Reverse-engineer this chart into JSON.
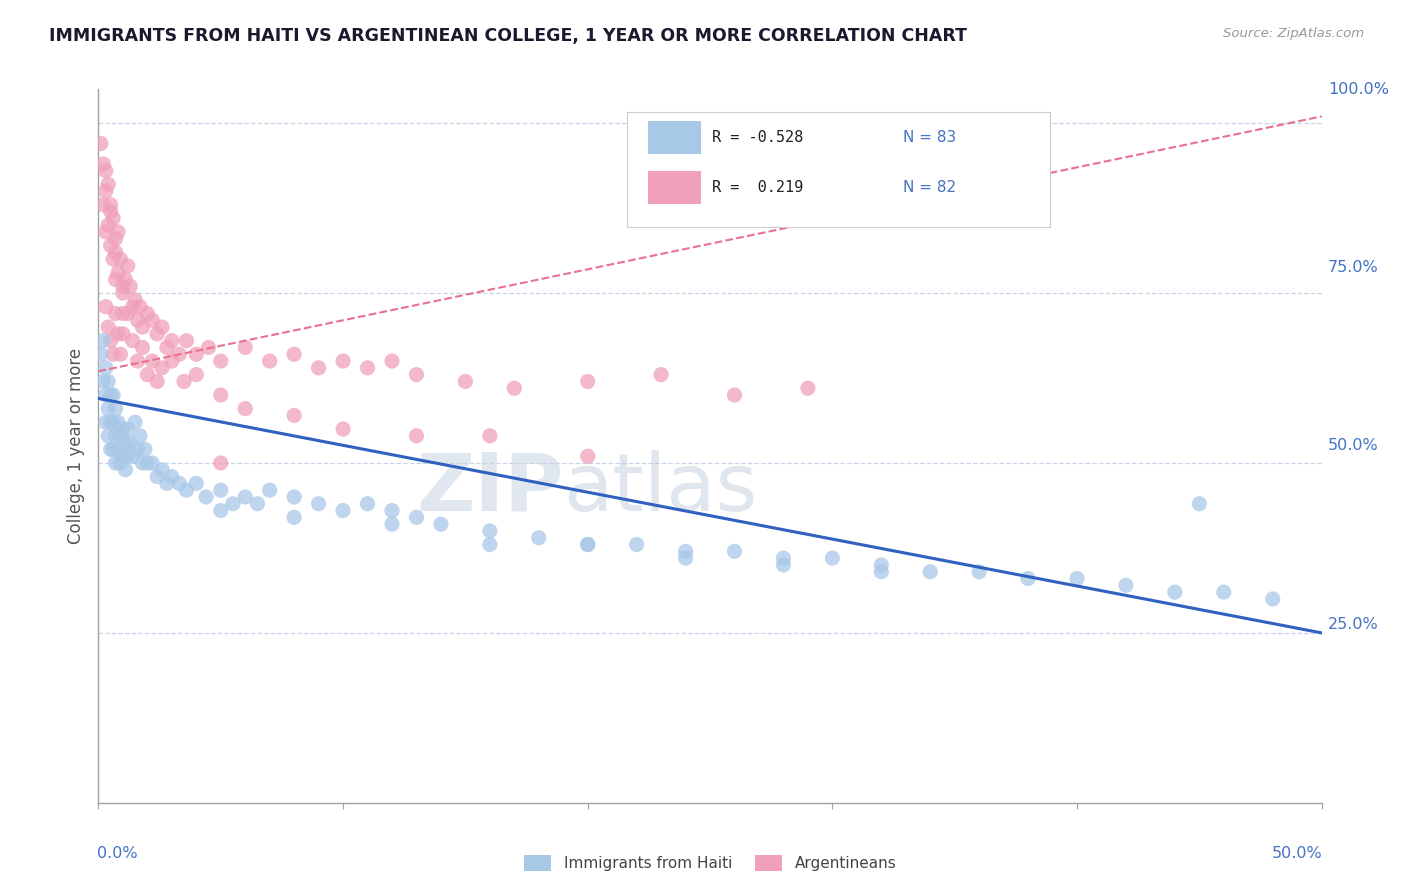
{
  "title": "IMMIGRANTS FROM HAITI VS ARGENTINEAN COLLEGE, 1 YEAR OR MORE CORRELATION CHART",
  "source_text": "Source: ZipAtlas.com",
  "ylabel": "College, 1 year or more",
  "legend_entry1_r": "R = -0.528",
  "legend_entry1_n": "N = 83",
  "legend_entry2_r": "R =  0.219",
  "legend_entry2_n": "N = 82",
  "legend_label1": "Immigrants from Haiti",
  "legend_label2": "Argentineans",
  "haiti_color": "#a8c8e8",
  "argentina_color": "#f0a0b8",
  "haiti_line_color": "#3060c0",
  "argentina_line_color": "#e87090",
  "watermark_zip": "ZIP",
  "watermark_atlas": "atlas",
  "background_color": "#ffffff",
  "grid_color": "#c8d4e8",
  "x_min": 0.0,
  "x_max": 0.5,
  "y_min": 0.0,
  "y_max": 1.05,
  "haiti_trend_x0": 0.0,
  "haiti_trend_y0": 0.595,
  "haiti_trend_x1": 0.5,
  "haiti_trend_y1": 0.25,
  "arg_trend_x0": 0.0,
  "arg_trend_y0": 0.635,
  "arg_trend_x1": 0.5,
  "arg_trend_y1": 1.01,
  "haiti_scatter_x": [
    0.001,
    0.002,
    0.002,
    0.003,
    0.003,
    0.003,
    0.004,
    0.004,
    0.004,
    0.005,
    0.005,
    0.005,
    0.006,
    0.006,
    0.006,
    0.007,
    0.007,
    0.007,
    0.008,
    0.008,
    0.009,
    0.009,
    0.01,
    0.01,
    0.011,
    0.011,
    0.012,
    0.012,
    0.013,
    0.014,
    0.015,
    0.016,
    0.017,
    0.018,
    0.019,
    0.02,
    0.022,
    0.024,
    0.026,
    0.028,
    0.03,
    0.033,
    0.036,
    0.04,
    0.044,
    0.05,
    0.055,
    0.06,
    0.065,
    0.07,
    0.08,
    0.09,
    0.1,
    0.11,
    0.12,
    0.13,
    0.14,
    0.16,
    0.18,
    0.2,
    0.22,
    0.24,
    0.26,
    0.28,
    0.3,
    0.32,
    0.34,
    0.36,
    0.38,
    0.4,
    0.42,
    0.44,
    0.46,
    0.48,
    0.05,
    0.08,
    0.12,
    0.16,
    0.2,
    0.24,
    0.28,
    0.32,
    0.45
  ],
  "haiti_scatter_y": [
    0.66,
    0.68,
    0.62,
    0.64,
    0.6,
    0.56,
    0.62,
    0.58,
    0.54,
    0.6,
    0.56,
    0.52,
    0.6,
    0.56,
    0.52,
    0.58,
    0.54,
    0.5,
    0.56,
    0.52,
    0.54,
    0.5,
    0.55,
    0.51,
    0.53,
    0.49,
    0.55,
    0.51,
    0.53,
    0.51,
    0.56,
    0.52,
    0.54,
    0.5,
    0.52,
    0.5,
    0.5,
    0.48,
    0.49,
    0.47,
    0.48,
    0.47,
    0.46,
    0.47,
    0.45,
    0.46,
    0.44,
    0.45,
    0.44,
    0.46,
    0.45,
    0.44,
    0.43,
    0.44,
    0.43,
    0.42,
    0.41,
    0.4,
    0.39,
    0.38,
    0.38,
    0.37,
    0.37,
    0.36,
    0.36,
    0.35,
    0.34,
    0.34,
    0.33,
    0.33,
    0.32,
    0.31,
    0.31,
    0.3,
    0.43,
    0.42,
    0.41,
    0.38,
    0.38,
    0.36,
    0.35,
    0.34,
    0.44
  ],
  "arg_scatter_x": [
    0.001,
    0.002,
    0.002,
    0.003,
    0.003,
    0.004,
    0.004,
    0.005,
    0.005,
    0.006,
    0.006,
    0.007,
    0.007,
    0.008,
    0.008,
    0.009,
    0.01,
    0.01,
    0.011,
    0.012,
    0.013,
    0.014,
    0.015,
    0.016,
    0.017,
    0.018,
    0.02,
    0.022,
    0.024,
    0.026,
    0.028,
    0.03,
    0.033,
    0.036,
    0.04,
    0.045,
    0.05,
    0.06,
    0.07,
    0.08,
    0.09,
    0.1,
    0.11,
    0.12,
    0.13,
    0.15,
    0.17,
    0.2,
    0.23,
    0.26,
    0.29,
    0.003,
    0.004,
    0.005,
    0.006,
    0.007,
    0.008,
    0.009,
    0.01,
    0.012,
    0.014,
    0.016,
    0.018,
    0.02,
    0.022,
    0.024,
    0.026,
    0.03,
    0.035,
    0.04,
    0.05,
    0.06,
    0.08,
    0.1,
    0.13,
    0.16,
    0.2,
    0.003,
    0.005,
    0.007,
    0.01,
    0.05
  ],
  "arg_scatter_y": [
    0.97,
    0.94,
    0.88,
    0.9,
    0.84,
    0.91,
    0.85,
    0.88,
    0.82,
    0.86,
    0.8,
    0.83,
    0.77,
    0.84,
    0.78,
    0.8,
    0.76,
    0.72,
    0.77,
    0.79,
    0.76,
    0.73,
    0.74,
    0.71,
    0.73,
    0.7,
    0.72,
    0.71,
    0.69,
    0.7,
    0.67,
    0.68,
    0.66,
    0.68,
    0.66,
    0.67,
    0.65,
    0.67,
    0.65,
    0.66,
    0.64,
    0.65,
    0.64,
    0.65,
    0.63,
    0.62,
    0.61,
    0.62,
    0.63,
    0.6,
    0.61,
    0.73,
    0.7,
    0.68,
    0.66,
    0.72,
    0.69,
    0.66,
    0.69,
    0.72,
    0.68,
    0.65,
    0.67,
    0.63,
    0.65,
    0.62,
    0.64,
    0.65,
    0.62,
    0.63,
    0.6,
    0.58,
    0.57,
    0.55,
    0.54,
    0.54,
    0.51,
    0.93,
    0.87,
    0.81,
    0.75,
    0.5
  ]
}
